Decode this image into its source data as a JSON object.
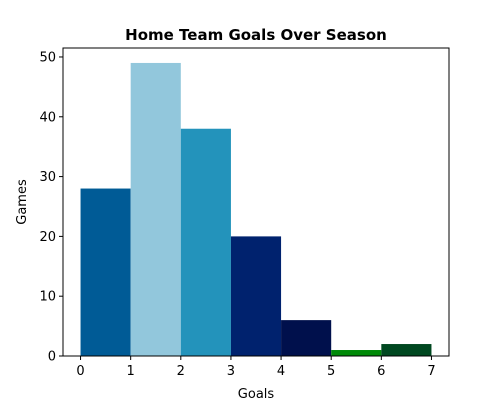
{
  "chart_data": {
    "type": "bar",
    "title": "Home Team Goals Over Season",
    "xlabel": "Goals",
    "ylabel": "Games",
    "xlim": [
      -0.35,
      7.35
    ],
    "ylim": [
      0,
      51.5
    ],
    "x_ticks": [
      0,
      1,
      2,
      3,
      4,
      5,
      6,
      7
    ],
    "y_ticks": [
      0,
      10,
      20,
      30,
      40,
      50
    ],
    "grid": false,
    "bins": [
      {
        "start": 0,
        "end": 1,
        "value": 28,
        "color": "#005b96"
      },
      {
        "start": 1,
        "end": 2,
        "value": 49,
        "color": "#92c7dc"
      },
      {
        "start": 2,
        "end": 3,
        "value": 38,
        "color": "#2393bb"
      },
      {
        "start": 3,
        "end": 4,
        "value": 20,
        "color": "#00226e"
      },
      {
        "start": 4,
        "end": 5,
        "value": 6,
        "color": "#00104c"
      },
      {
        "start": 5,
        "end": 6,
        "value": 1,
        "color": "#008a08"
      },
      {
        "start": 6,
        "end": 7,
        "value": 2,
        "color": "#004820"
      }
    ]
  }
}
